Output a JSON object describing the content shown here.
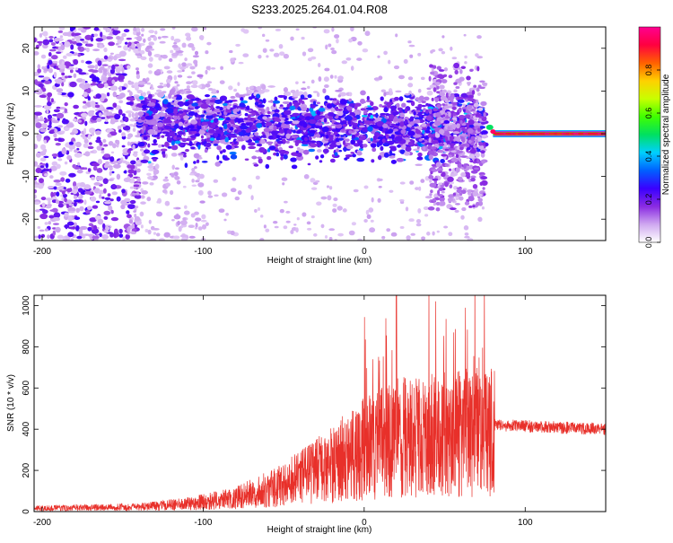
{
  "title": "S233.2025.264.01.04.R08",
  "chart_data": [
    {
      "type": "heatmap",
      "name": "spectrogram",
      "xlabel": "Height of straight line (km)",
      "ylabel": "Frequency (Hz)",
      "xlim": [
        -205,
        150
      ],
      "ylim": [
        -25,
        25
      ],
      "xticks": [
        -200,
        -100,
        0,
        100
      ],
      "yticks": [
        -20,
        -10,
        0,
        10,
        20
      ],
      "colorbar": {
        "label": "Normalized spectral amplitude",
        "range": [
          0,
          1
        ],
        "ticks": [
          "0.0",
          "0.2",
          "0.4",
          "0.6",
          "0.8"
        ],
        "colors": [
          "#ffffff",
          "#cfa8f0",
          "#8a2be2",
          "#3a00ff",
          "#0060ff",
          "#00d0ff",
          "#00e060",
          "#40ff00",
          "#c8ff00",
          "#ffd000",
          "#ff6000",
          "#ff0040",
          "#ff0090"
        ]
      },
      "regions": [
        {
          "description_x": [
            -205,
            -140
          ],
          "freq_spread": 25,
          "level": 0.15
        },
        {
          "description_x": [
            -140,
            75
          ],
          "freq_spread": 8,
          "level": 0.25
        },
        {
          "description_x": [
            75,
            150
          ],
          "freq_center": 0,
          "level": 0.85
        }
      ]
    },
    {
      "type": "line",
      "name": "snr",
      "xlabel": "Height of straight line (km)",
      "ylabel": "SNR (10 * v/v)",
      "xlim": [
        -205,
        150
      ],
      "ylim": [
        0,
        1050
      ],
      "xticks": [
        -200,
        -100,
        0,
        100
      ],
      "yticks": [
        0,
        200,
        400,
        600,
        800,
        1000
      ],
      "color": "#e8302a",
      "envelope": [
        {
          "x": -205,
          "y": 15
        },
        {
          "x": -140,
          "y": 20
        },
        {
          "x": -110,
          "y": 35
        },
        {
          "x": -80,
          "y": 60
        },
        {
          "x": -50,
          "y": 120
        },
        {
          "x": -20,
          "y": 210
        },
        {
          "x": 0,
          "y": 280
        },
        {
          "x": 20,
          "y": 330
        },
        {
          "x": 50,
          "y": 340
        },
        {
          "x": 80,
          "y": 360
        },
        {
          "x": 81,
          "y": 420
        },
        {
          "x": 150,
          "y": 400
        }
      ]
    }
  ]
}
